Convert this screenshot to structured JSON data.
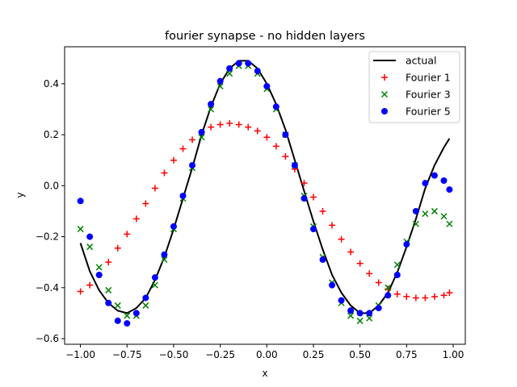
{
  "chart_data": {
    "type": "scatter",
    "title": "fourier synapse - no hidden layers",
    "xlabel": "x",
    "ylabel": "y",
    "xlim": [
      -1.085,
      1.065
    ],
    "ylim": [
      -0.622,
      0.545
    ],
    "xticks": [
      -1.0,
      -0.75,
      -0.5,
      -0.25,
      0.0,
      0.25,
      0.5,
      0.75,
      1.0
    ],
    "xtick_labels": [
      "−1.00",
      "−0.75",
      "−0.50",
      "−0.25",
      "0.00",
      "0.25",
      "0.50",
      "0.75",
      "1.00"
    ],
    "yticks": [
      -0.6,
      -0.4,
      -0.2,
      0.0,
      0.2,
      0.4
    ],
    "ytick_labels": [
      "−0.6",
      "−0.4",
      "−0.2",
      "0.0",
      "0.2",
      "0.4"
    ],
    "grid": false,
    "legend_position": "top-right",
    "series": [
      {
        "name": "actual",
        "style": "line",
        "color": "#000000",
        "x": [
          -1.0,
          -0.95,
          -0.9,
          -0.85,
          -0.8,
          -0.75,
          -0.7,
          -0.65,
          -0.6,
          -0.55,
          -0.5,
          -0.45,
          -0.4,
          -0.35,
          -0.3,
          -0.25,
          -0.2,
          -0.15,
          -0.1,
          -0.05,
          0.0,
          0.05,
          0.1,
          0.15,
          0.2,
          0.25,
          0.3,
          0.35,
          0.4,
          0.45,
          0.5,
          0.55,
          0.6,
          0.65,
          0.7,
          0.75,
          0.8,
          0.85,
          0.9,
          0.95,
          0.98
        ],
        "y": [
          -0.225,
          -0.335,
          -0.41,
          -0.46,
          -0.49,
          -0.5,
          -0.48,
          -0.44,
          -0.37,
          -0.28,
          -0.17,
          -0.05,
          0.07,
          0.2,
          0.31,
          0.4,
          0.46,
          0.49,
          0.49,
          0.46,
          0.4,
          0.32,
          0.22,
          0.1,
          -0.02,
          -0.14,
          -0.25,
          -0.35,
          -0.42,
          -0.47,
          -0.5,
          -0.5,
          -0.47,
          -0.42,
          -0.34,
          -0.24,
          -0.13,
          -0.01,
          0.08,
          0.15,
          0.185
        ]
      },
      {
        "name": "Fourier 1",
        "style": "plus",
        "color": "#ff0000",
        "x": [
          -1.0,
          -0.95,
          -0.9,
          -0.85,
          -0.8,
          -0.75,
          -0.7,
          -0.65,
          -0.6,
          -0.55,
          -0.5,
          -0.45,
          -0.4,
          -0.35,
          -0.3,
          -0.25,
          -0.2,
          -0.15,
          -0.1,
          -0.05,
          0.0,
          0.05,
          0.1,
          0.15,
          0.2,
          0.25,
          0.3,
          0.35,
          0.4,
          0.45,
          0.5,
          0.55,
          0.6,
          0.65,
          0.7,
          0.75,
          0.8,
          0.85,
          0.9,
          0.95,
          0.98
        ],
        "y": [
          -0.415,
          -0.39,
          -0.35,
          -0.3,
          -0.245,
          -0.19,
          -0.13,
          -0.07,
          -0.01,
          0.05,
          0.1,
          0.145,
          0.18,
          0.21,
          0.23,
          0.24,
          0.245,
          0.24,
          0.23,
          0.215,
          0.19,
          0.155,
          0.115,
          0.065,
          0.01,
          -0.045,
          -0.1,
          -0.155,
          -0.21,
          -0.26,
          -0.305,
          -0.345,
          -0.38,
          -0.405,
          -0.425,
          -0.435,
          -0.44,
          -0.44,
          -0.435,
          -0.43,
          -0.42
        ]
      },
      {
        "name": "Fourier 3",
        "style": "x",
        "color": "#008000",
        "x": [
          -1.0,
          -0.95,
          -0.9,
          -0.85,
          -0.8,
          -0.75,
          -0.7,
          -0.65,
          -0.6,
          -0.55,
          -0.5,
          -0.45,
          -0.4,
          -0.35,
          -0.3,
          -0.25,
          -0.2,
          -0.15,
          -0.1,
          -0.05,
          0.0,
          0.05,
          0.1,
          0.15,
          0.2,
          0.25,
          0.3,
          0.35,
          0.4,
          0.45,
          0.5,
          0.55,
          0.6,
          0.65,
          0.7,
          0.75,
          0.8,
          0.85,
          0.9,
          0.95,
          0.98
        ],
        "y": [
          -0.17,
          -0.24,
          -0.32,
          -0.41,
          -0.47,
          -0.51,
          -0.51,
          -0.47,
          -0.39,
          -0.29,
          -0.17,
          -0.05,
          0.07,
          0.19,
          0.3,
          0.39,
          0.44,
          0.47,
          0.47,
          0.44,
          0.38,
          0.3,
          0.2,
          0.08,
          -0.04,
          -0.16,
          -0.28,
          -0.38,
          -0.46,
          -0.51,
          -0.53,
          -0.52,
          -0.47,
          -0.4,
          -0.31,
          -0.22,
          -0.15,
          -0.11,
          -0.1,
          -0.12,
          -0.15
        ]
      },
      {
        "name": "Fourier 5",
        "style": "dot",
        "color": "#0000ff",
        "x": [
          -1.0,
          -0.95,
          -0.9,
          -0.85,
          -0.8,
          -0.75,
          -0.7,
          -0.65,
          -0.6,
          -0.55,
          -0.5,
          -0.45,
          -0.4,
          -0.35,
          -0.3,
          -0.25,
          -0.2,
          -0.15,
          -0.1,
          -0.05,
          0.0,
          0.05,
          0.1,
          0.15,
          0.2,
          0.25,
          0.3,
          0.35,
          0.4,
          0.45,
          0.5,
          0.55,
          0.6,
          0.65,
          0.7,
          0.75,
          0.8,
          0.85,
          0.9,
          0.95,
          0.98
        ],
        "y": [
          -0.06,
          -0.2,
          -0.35,
          -0.46,
          -0.53,
          -0.54,
          -0.5,
          -0.44,
          -0.36,
          -0.27,
          -0.16,
          -0.04,
          0.08,
          0.21,
          0.32,
          0.41,
          0.46,
          0.48,
          0.48,
          0.45,
          0.39,
          0.31,
          0.2,
          0.08,
          -0.05,
          -0.17,
          -0.29,
          -0.39,
          -0.45,
          -0.49,
          -0.5,
          -0.5,
          -0.48,
          -0.43,
          -0.35,
          -0.23,
          -0.1,
          0.01,
          0.04,
          0.02,
          -0.015
        ]
      }
    ]
  }
}
